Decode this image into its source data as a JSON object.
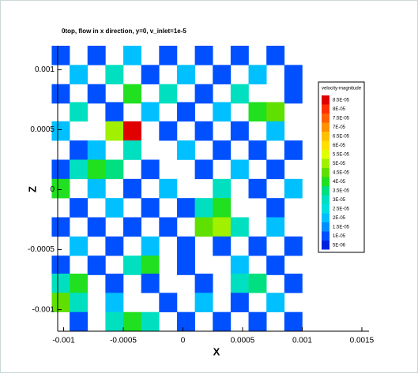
{
  "chart_data": {
    "type": "contour",
    "title": "0top, flow in x direction, y=0, v_inlet=1e-5",
    "xlabel": "X",
    "ylabel": "Z",
    "xlim": [
      -0.00105,
      0.00156
    ],
    "ylim": [
      -0.00118,
      0.0012
    ],
    "xticks": [
      -0.001,
      -0.0005,
      0,
      0.0005,
      0.001,
      0.0015
    ],
    "yticks": [
      -0.001,
      -0.0005,
      0,
      0.0005,
      0.001
    ],
    "legend_title": "velocity-magnitude",
    "levels": [
      {
        "value": 8.5e-05,
        "label": "8.5E-05"
      },
      {
        "value": 8e-05,
        "label": "8E-05"
      },
      {
        "value": 7.5e-05,
        "label": "7.5E-05"
      },
      {
        "value": 7e-05,
        "label": "7E-05"
      },
      {
        "value": 6.5e-05,
        "label": "6.5E-05"
      },
      {
        "value": 6e-05,
        "label": "6E-05"
      },
      {
        "value": 5.5e-05,
        "label": "5.5E-05"
      },
      {
        "value": 5e-05,
        "label": "5E-05"
      },
      {
        "value": 4.5e-05,
        "label": "4.5E-05"
      },
      {
        "value": 4e-05,
        "label": "4E-05"
      },
      {
        "value": 3.5e-05,
        "label": "3.5E-05"
      },
      {
        "value": 3e-05,
        "label": "3E-05"
      },
      {
        "value": 2.5e-05,
        "label": "2.5E-05"
      },
      {
        "value": 2e-05,
        "label": "2E-05"
      },
      {
        "value": 1.5e-05,
        "label": "1.5E-05"
      },
      {
        "value": 1e-05,
        "label": "1E-05"
      },
      {
        "value": 5e-06,
        "label": "5E-06"
      }
    ],
    "colors": [
      "#e00000",
      "#ff3000",
      "#ff6000",
      "#ff9000",
      "#ffc000",
      "#ffe000",
      "#e0ff00",
      "#a0f000",
      "#60e000",
      "#20e020",
      "#00e080",
      "#00e0c0",
      "#00e0e0",
      "#00c0ff",
      "#0090ff",
      "#0050ff",
      "#0020e0"
    ],
    "x": [
      -0.001025,
      -0.000875,
      -0.000725,
      -0.000575,
      -0.000425,
      -0.000275,
      -0.000125,
      2.5e-05,
      0.000175,
      0.000325,
      0.000475,
      0.000625,
      0.000775,
      0.000925
    ],
    "y": [
      0.00112,
      0.00096,
      0.0008,
      0.00065,
      0.00049,
      0.00033,
      0.00017,
      1e-05,
      -0.00015,
      -0.00031,
      -0.00047,
      -0.00063,
      -0.00078,
      -0.00094,
      -0.0011
    ],
    "z": [
      [
        1e-05,
        null,
        1e-05,
        null,
        2e-05,
        null,
        1e-05,
        null,
        1e-05,
        null,
        1e-05,
        null,
        1e-05,
        null
      ],
      [
        null,
        2e-05,
        null,
        3e-05,
        null,
        1e-05,
        null,
        2e-05,
        null,
        1e-05,
        null,
        2e-05,
        null,
        1e-05
      ],
      [
        1e-05,
        null,
        1e-05,
        null,
        4e-05,
        null,
        3e-05,
        null,
        1e-05,
        null,
        3e-05,
        null,
        null,
        1e-05
      ],
      [
        null,
        3e-05,
        null,
        1e-05,
        null,
        2e-05,
        null,
        1e-05,
        null,
        2e-05,
        null,
        4e-05,
        4.5e-05,
        null
      ],
      [
        2e-05,
        null,
        null,
        5e-05,
        8.5e-05,
        null,
        1e-05,
        null,
        1e-05,
        null,
        1e-05,
        null,
        2e-05,
        null
      ],
      [
        null,
        1e-05,
        2e-05,
        null,
        3e-05,
        null,
        null,
        2e-05,
        null,
        1e-05,
        null,
        1e-05,
        null,
        1e-05
      ],
      [
        1e-05,
        3e-05,
        4e-05,
        3.5e-05,
        null,
        1e-05,
        null,
        null,
        1e-05,
        null,
        2e-05,
        null,
        1e-05,
        null
      ],
      [
        4e-05,
        null,
        2e-05,
        null,
        1e-05,
        null,
        2e-05,
        null,
        null,
        3e-05,
        null,
        1e-05,
        null,
        2e-05
      ],
      [
        null,
        1e-05,
        null,
        2e-05,
        null,
        1e-05,
        null,
        1e-05,
        3e-05,
        4e-05,
        null,
        null,
        1e-05,
        null
      ],
      [
        1e-05,
        null,
        1e-05,
        null,
        1e-05,
        null,
        1e-05,
        null,
        4.5e-05,
        5e-05,
        3e-05,
        null,
        2e-05,
        null
      ],
      [
        null,
        2e-05,
        null,
        1e-05,
        null,
        2e-05,
        null,
        1e-05,
        null,
        1e-05,
        null,
        1e-05,
        null,
        1e-05
      ],
      [
        1e-05,
        null,
        1e-05,
        null,
        3e-05,
        4e-05,
        null,
        1e-05,
        null,
        null,
        2e-05,
        null,
        1e-05,
        null
      ],
      [
        3e-05,
        4e-05,
        null,
        1e-05,
        null,
        1e-05,
        null,
        null,
        1e-05,
        null,
        3e-05,
        3.5e-05,
        null,
        1e-05
      ],
      [
        4.5e-05,
        3e-05,
        null,
        2e-05,
        null,
        null,
        1e-05,
        null,
        2e-05,
        null,
        1e-05,
        null,
        2e-05,
        null
      ],
      [
        null,
        1e-05,
        null,
        3e-05,
        4e-05,
        3e-05,
        null,
        1e-05,
        null,
        1e-05,
        null,
        1e-05,
        null,
        1e-05
      ]
    ]
  }
}
